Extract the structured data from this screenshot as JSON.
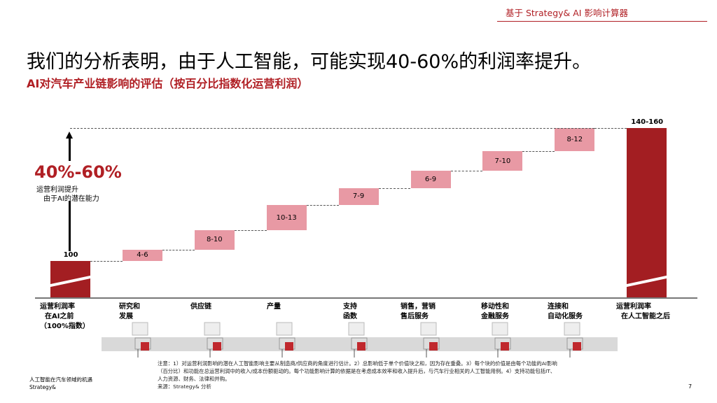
{
  "header": {
    "tool": "基于 Strategy& AI 影响计算器"
  },
  "title": "我们的分析表明，由于人工智能，可能实现40-60%的利润率提升。",
  "subtitle": "AI对汽车产业链影响的评估（按百分比指数化运营利润）",
  "callout": {
    "value": "40%-60%",
    "line1": "运营利润提升",
    "line2": "由于AI的潜在能力"
  },
  "colors": {
    "accent": "#b01f24",
    "total_bar": "#a31e22",
    "increment_bar": "#e899a4"
  },
  "chart_data": {
    "type": "waterfall",
    "categories": [
      "运营利润率\n  在AI之前\n（100%指数）",
      "研究和\n发展",
      "供应链",
      "产量",
      "支持\n函数",
      "销售，营销\n售后服务",
      "移动性和\n金融服务",
      "连接和\n自动化服务",
      "运营利润率\n  在人工智能之后"
    ],
    "start": {
      "label": "100",
      "value": 100
    },
    "increments": [
      {
        "label": "4-6",
        "low": 4,
        "high": 6
      },
      {
        "label": "8-10",
        "low": 8,
        "high": 10
      },
      {
        "label": "10-13",
        "low": 10,
        "high": 13
      },
      {
        "label": "7-9",
        "low": 7,
        "high": 9
      },
      {
        "label": "6-9",
        "low": 6,
        "high": 9
      },
      {
        "label": "7-10",
        "low": 7,
        "high": 10
      },
      {
        "label": "8-12",
        "low": 8,
        "high": 12
      }
    ],
    "end": {
      "label": "140-160",
      "low": 140,
      "high": 160
    },
    "broken_axis": true
  },
  "notes": "注意：1）对运营利润影响的潜在人工智能影响主要从制造商/供应商的角度进行估计。2）总影响低于单个价值块之和，因为存在重叠。3）每个块的价值是由每个功能的AI影响（百分比）和功能在总运营利润中的收入/成本份额驱动的。每个功能影响计算的依据是在考虑成本效率和收入提升后，与汽车行业相关的人工智能用例。4）支持功能包括IT、人力资源、财务、法律和并购。",
  "source": "来源：Strategy& 分析",
  "footer": {
    "line1": "人工智能在汽车领域的机遇",
    "line2": "Strategy&",
    "page": "7"
  }
}
